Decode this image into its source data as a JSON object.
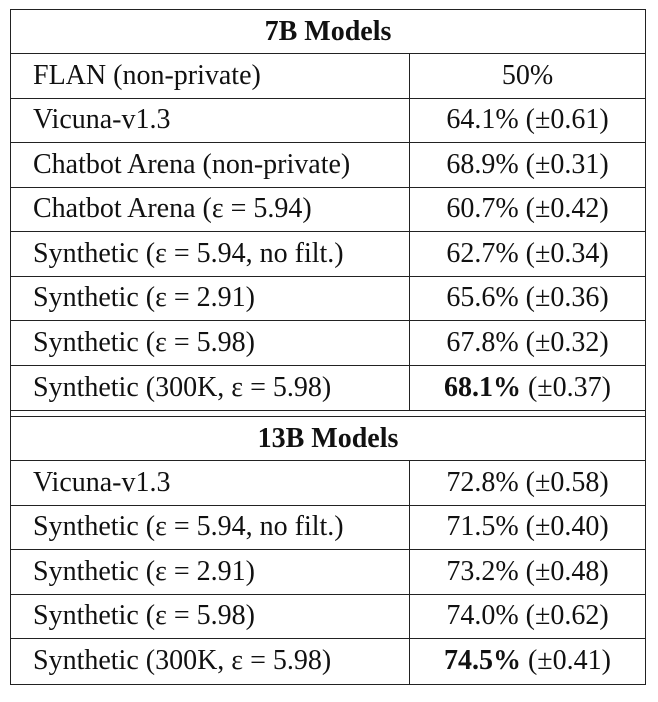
{
  "sections": [
    {
      "title": "7B Models",
      "rows": [
        {
          "model": "FLAN (non-private)",
          "score": "50%",
          "score_bold": "",
          "score_rest": ""
        },
        {
          "model": "Vicuna-v1.3",
          "score": "64.1% (±0.61)",
          "score_bold": "",
          "score_rest": ""
        },
        {
          "model": "Chatbot Arena (non-private)",
          "score": "68.9% (±0.31)",
          "score_bold": "",
          "score_rest": ""
        },
        {
          "model": "Chatbot Arena (ε = 5.94)",
          "score": "60.7% (±0.42)",
          "score_bold": "",
          "score_rest": ""
        },
        {
          "model": "Synthetic (ε = 5.94, no filt.)",
          "score": "62.7% (±0.34)",
          "score_bold": "",
          "score_rest": ""
        },
        {
          "model": "Synthetic (ε = 2.91)",
          "score": "65.6% (±0.36)",
          "score_bold": "",
          "score_rest": ""
        },
        {
          "model": "Synthetic (ε = 5.98)",
          "score": "67.8% (±0.32)",
          "score_bold": "",
          "score_rest": ""
        },
        {
          "model": "Synthetic (300K, ε = 5.98)",
          "score": "",
          "score_bold": "68.1%",
          "score_rest": " (±0.37)"
        }
      ]
    },
    {
      "title": "13B Models",
      "rows": [
        {
          "model": "Vicuna-v1.3",
          "score": "72.8% (±0.58)",
          "score_bold": "",
          "score_rest": ""
        },
        {
          "model": "Synthetic (ε = 5.94, no filt.)",
          "score": "71.5% (±0.40)",
          "score_bold": "",
          "score_rest": ""
        },
        {
          "model": "Synthetic (ε = 2.91)",
          "score": "73.2% (±0.48)",
          "score_bold": "",
          "score_rest": ""
        },
        {
          "model": "Synthetic (ε = 5.98)",
          "score": "74.0% (±0.62)",
          "score_bold": "",
          "score_rest": ""
        },
        {
          "model": "Synthetic (300K, ε = 5.98)",
          "score": "",
          "score_bold": "74.5%",
          "score_rest": " (±0.41)"
        }
      ]
    }
  ]
}
